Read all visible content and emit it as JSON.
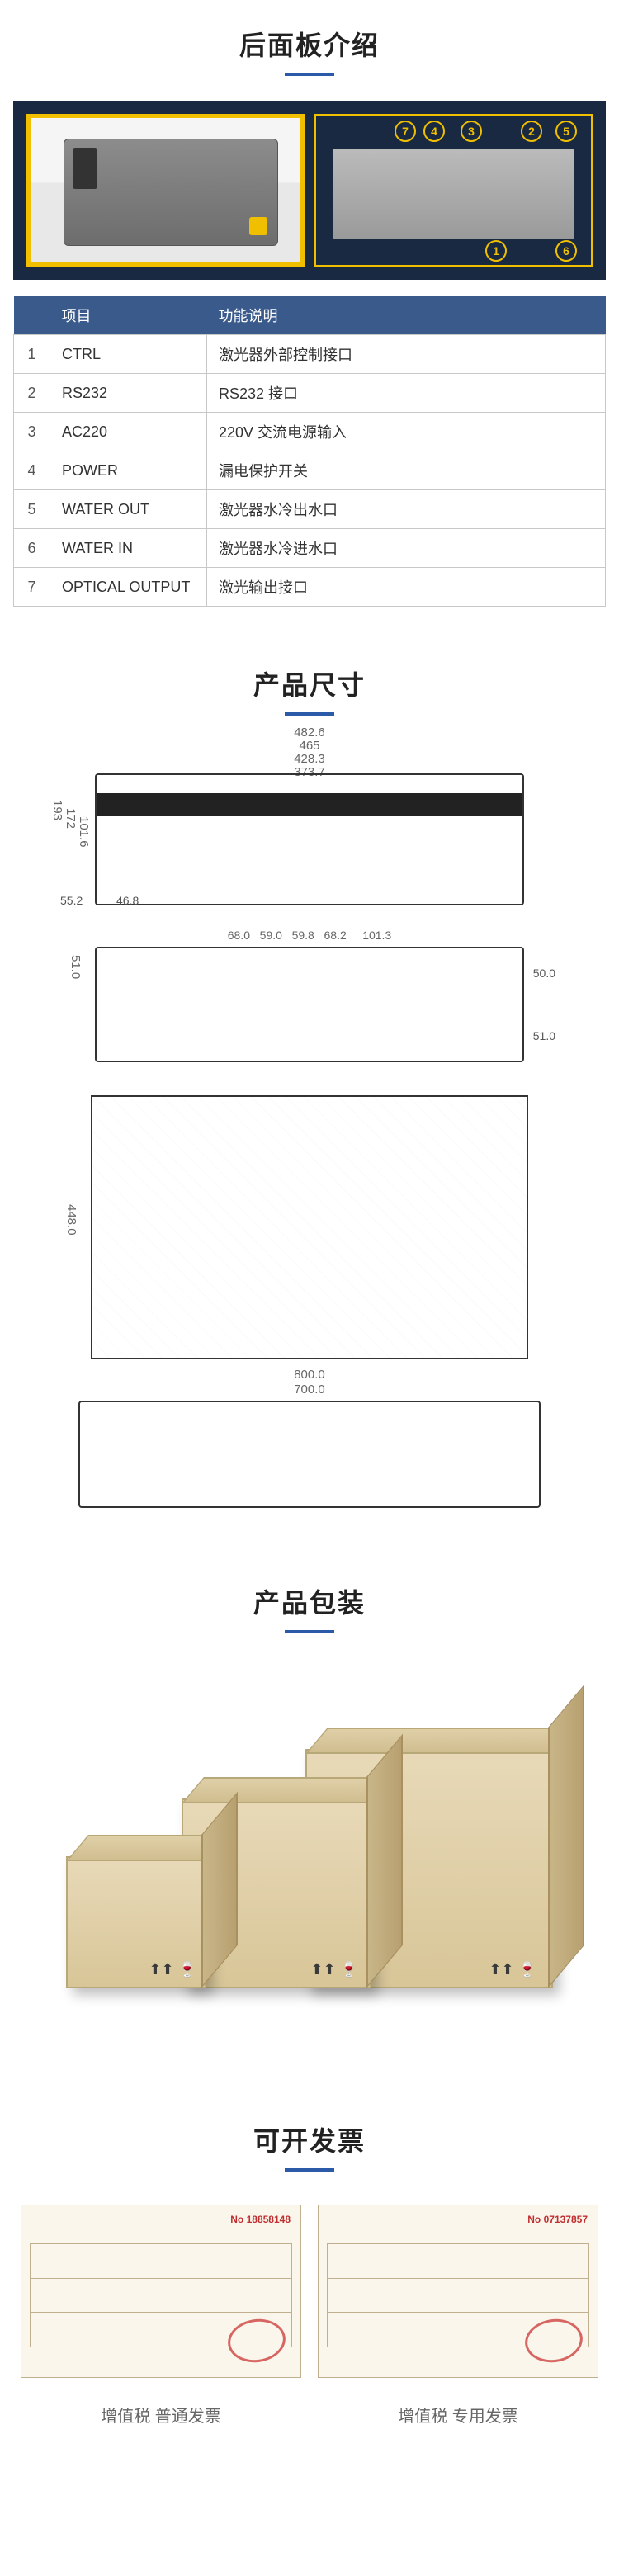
{
  "sections": {
    "rear_panel": "后面板介绍",
    "dimensions": "产品尺寸",
    "packaging": "产品包装",
    "invoice": "可开发票"
  },
  "rear_table": {
    "head_item": "项目",
    "head_desc": "功能说明",
    "rows": [
      {
        "n": "1",
        "item": "CTRL",
        "desc": "激光器外部控制接口"
      },
      {
        "n": "2",
        "item": "RS232",
        "desc": "RS232 接口"
      },
      {
        "n": "3",
        "item": "AC220",
        "desc": "220V 交流电源输入"
      },
      {
        "n": "4",
        "item": "POWER",
        "desc": "漏电保护开关"
      },
      {
        "n": "5",
        "item": "WATER OUT",
        "desc": "激光器水冷出水口"
      },
      {
        "n": "6",
        "item": "WATER IN",
        "desc": "激光器水冷进水口"
      },
      {
        "n": "7",
        "item": "OPTICAL OUTPUT",
        "desc": "激光输出接口"
      }
    ]
  },
  "callouts": {
    "c1": "1",
    "c2": "2",
    "c3": "3",
    "c4": "4",
    "c5": "5",
    "c6": "6",
    "c7": "7"
  },
  "dims": {
    "front": {
      "w1": "482.6",
      "w2": "465",
      "w3": "428.3",
      "w4": "373.7",
      "h1": "193",
      "h2": "172",
      "h3": "101.6",
      "h4": "55.2",
      "h5": "46.8"
    },
    "rear": {
      "d1": "68.0",
      "d2": "59.0",
      "d3": "59.8",
      "d4": "68.2",
      "d5": "101.3",
      "s1": "51.0",
      "s2": "50.0",
      "s3": "51.0"
    },
    "top": {
      "l": "448.0"
    },
    "side": {
      "w1": "800.0",
      "w2": "700.0"
    }
  },
  "invoices": {
    "left_num": "No 18858148",
    "right_num": "No 07137857",
    "caption_left": "增值税 普通发票",
    "caption_right": "增值税 专用发票"
  },
  "colors": {
    "accent": "#2b5aa8",
    "hero_bg": "#1a2942",
    "gold": "#f0c000",
    "table_head": "#3a5a8c"
  }
}
